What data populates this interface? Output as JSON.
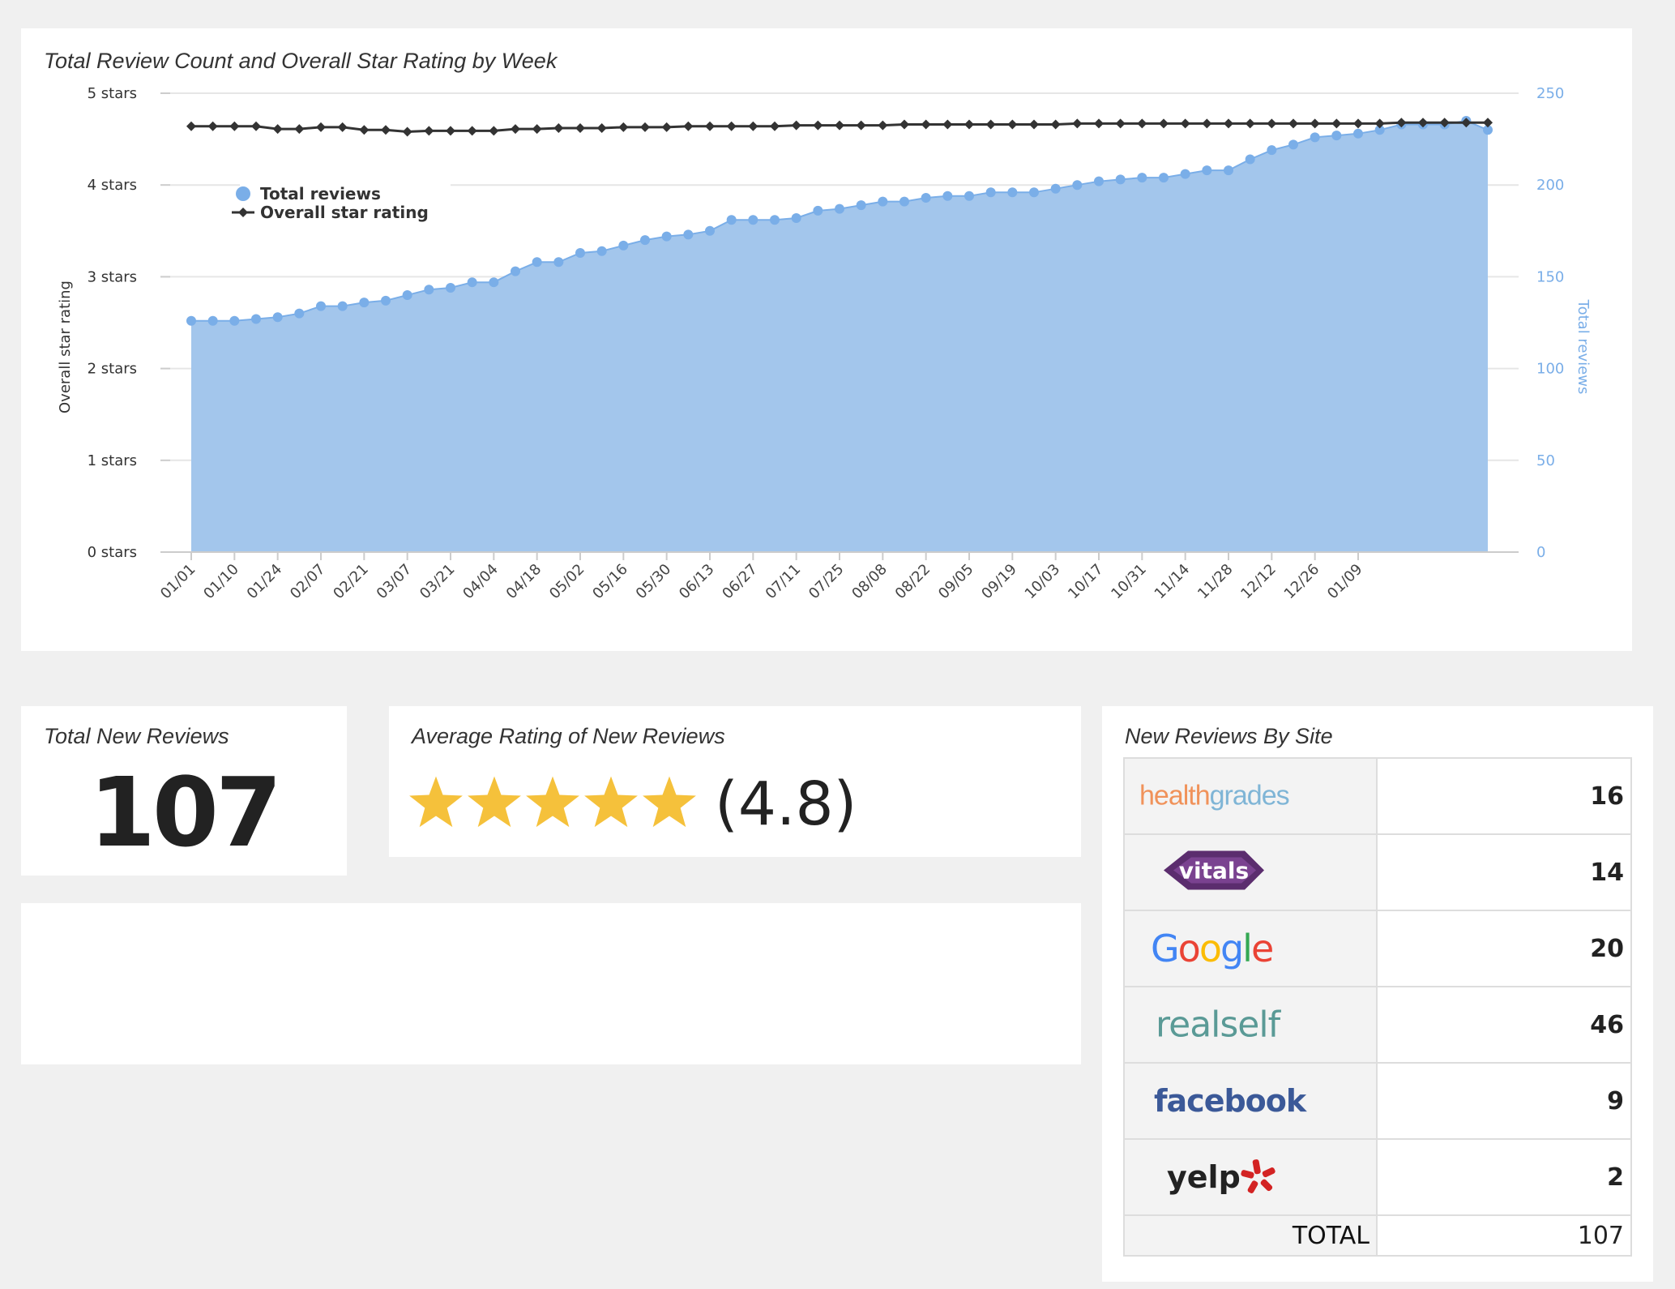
{
  "chart_panel": {
    "title": "Total Review Count and Overall Star Rating by Week"
  },
  "chart_data": {
    "type": "line",
    "title": "Total Review Count and Overall Star Rating by Week",
    "x_tick_labels": [
      "01/01",
      "01/10",
      "01/24",
      "02/07",
      "02/21",
      "03/07",
      "03/21",
      "04/04",
      "04/18",
      "05/02",
      "05/16",
      "05/30",
      "06/13",
      "06/27",
      "07/11",
      "07/25",
      "08/08",
      "08/22",
      "09/05",
      "09/19",
      "10/03",
      "10/17",
      "10/31",
      "11/14",
      "11/28",
      "12/12",
      "12/26",
      "01/09"
    ],
    "left_axis": {
      "label": "Overall star rating",
      "ticks": [
        "0 stars",
        "1 stars",
        "2 stars",
        "3 stars",
        "4 stars",
        "5 stars"
      ],
      "range": [
        0,
        5
      ]
    },
    "right_axis": {
      "label": "Total reviews",
      "ticks": [
        "0",
        "50",
        "100",
        "150",
        "200",
        "250"
      ],
      "range": [
        0,
        250
      ]
    },
    "legend_position": "top-left",
    "series": [
      {
        "name": "Total reviews",
        "type": "area",
        "axis": "right",
        "color": "#7aaee8",
        "values": [
          126,
          126,
          126,
          127,
          128,
          130,
          134,
          134,
          136,
          137,
          140,
          143,
          144,
          147,
          147,
          153,
          158,
          158,
          163,
          164,
          167,
          170,
          172,
          173,
          175,
          181,
          181,
          181,
          182,
          186,
          187,
          189,
          191,
          191,
          193,
          194,
          194,
          196,
          196,
          196,
          198,
          200,
          202,
          203,
          204,
          204,
          206,
          208,
          208,
          214,
          219,
          222,
          226,
          227,
          228,
          230,
          233,
          233,
          233,
          235,
          230
        ]
      },
      {
        "name": "Overall star rating",
        "type": "line",
        "axis": "left",
        "color": "#333333",
        "values": [
          4.64,
          4.64,
          4.64,
          4.64,
          4.61,
          4.61,
          4.63,
          4.63,
          4.6,
          4.6,
          4.58,
          4.59,
          4.59,
          4.59,
          4.59,
          4.61,
          4.61,
          4.62,
          4.62,
          4.62,
          4.63,
          4.63,
          4.63,
          4.64,
          4.64,
          4.64,
          4.64,
          4.64,
          4.65,
          4.65,
          4.65,
          4.65,
          4.65,
          4.66,
          4.66,
          4.66,
          4.66,
          4.66,
          4.66,
          4.66,
          4.66,
          4.67,
          4.67,
          4.67,
          4.67,
          4.67,
          4.67,
          4.67,
          4.67,
          4.67,
          4.67,
          4.67,
          4.67,
          4.67,
          4.67,
          4.67,
          4.68,
          4.68,
          4.68,
          4.68,
          4.68
        ]
      }
    ]
  },
  "total_new_reviews": {
    "title": "Total New Reviews",
    "value": "107"
  },
  "average_rating": {
    "title": "Average Rating of New Reviews",
    "stars": 5,
    "value_text": "(4.8)",
    "star_color": "#f5c13b"
  },
  "sites": {
    "title": "New Reviews By Site",
    "rows": [
      {
        "site": "healthgrades",
        "logo_text": "healthgrades",
        "count": "16"
      },
      {
        "site": "vitals",
        "logo_text": "vitals",
        "count": "14"
      },
      {
        "site": "google",
        "logo_text": "Google",
        "count": "20"
      },
      {
        "site": "realself",
        "logo_text": "realself",
        "count": "46"
      },
      {
        "site": "facebook",
        "logo_text": "facebook",
        "count": "9"
      },
      {
        "site": "yelp",
        "logo_text": "yelp",
        "count": "2"
      }
    ],
    "total_label": "TOTAL",
    "total_count": "107"
  }
}
